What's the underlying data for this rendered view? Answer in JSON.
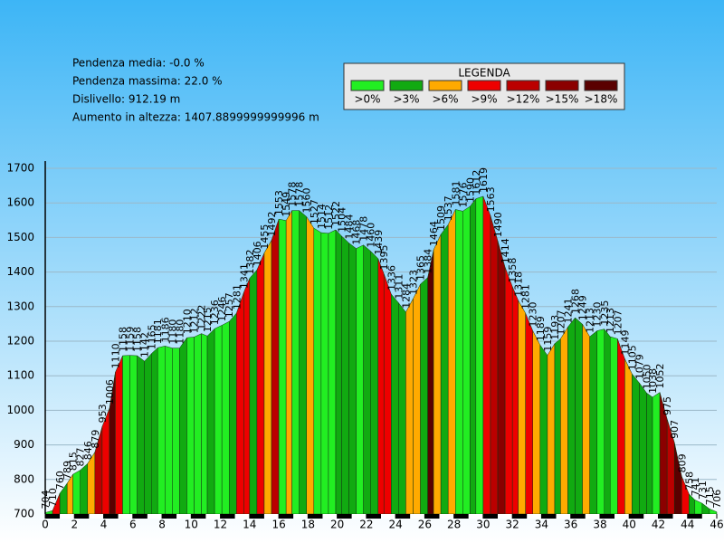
{
  "chart_data": {
    "type": "profile",
    "stats": [
      "Pendenza media: -0.0 %",
      "Pendenza massima: 22.0 %",
      "Dislivello: 912.19 m",
      "Aumento in altezza: 1407.8899999999996 m"
    ],
    "legend_title": "LEGENDA",
    "legend": [
      {
        "label": ">0%",
        "min": 0,
        "color": "#22ee22"
      },
      {
        "label": ">3%",
        "min": 3,
        "color": "#11aa11"
      },
      {
        "label": ">6%",
        "min": 6,
        "color": "#ffaa00"
      },
      {
        "label": ">9%",
        "min": 9,
        "color": "#ee0000"
      },
      {
        "label": ">12%",
        "min": 12,
        "color": "#bb0000"
      },
      {
        "label": ">15%",
        "min": 15,
        "color": "#8b0000"
      },
      {
        "label": ">18%",
        "min": 18,
        "color": "#5a0000"
      }
    ],
    "x": [
      0,
      0.5,
      1.0,
      1.5,
      1.9,
      2.4,
      2.9,
      3.4,
      3.9,
      4.4,
      4.8,
      5.3,
      5.8,
      6.3,
      6.8,
      7.3,
      7.7,
      8.2,
      8.7,
      9.2,
      9.7,
      10.2,
      10.7,
      11.1,
      11.6,
      12.1,
      12.6,
      13.1,
      13.6,
      14.0,
      14.5,
      15.0,
      15.5,
      16.0,
      16.5,
      16.9,
      17.4,
      17.9,
      18.4,
      18.9,
      19.4,
      19.9,
      20.3,
      20.8,
      21.3,
      21.8,
      22.3,
      22.8,
      23.2,
      23.7,
      24.2,
      24.7,
      25.2,
      25.7,
      26.2,
      26.6,
      27.1,
      27.6,
      28.1,
      28.6,
      29.1,
      29.5,
      30.0,
      30.5,
      31.0,
      31.5,
      32.0,
      32.4,
      32.9,
      33.4,
      33.9,
      34.4,
      34.9,
      35.3,
      35.8,
      36.3,
      36.8,
      37.3,
      37.8,
      38.3,
      38.7,
      39.2,
      39.7,
      40.2,
      40.7,
      41.2,
      41.6,
      42.1,
      42.6,
      43.1,
      43.6,
      44.1,
      44.5,
      45.0,
      45.5,
      46.0
    ],
    "values": [
      704,
      710,
      760,
      789,
      815,
      827,
      846,
      879,
      953,
      1006,
      1110,
      1158,
      1159,
      1158,
      1142,
      1165,
      1181,
      1186,
      1180,
      1180,
      1210,
      1212,
      1222,
      1215,
      1236,
      1246,
      1257,
      1281,
      1341,
      1382,
      1406,
      1455,
      1492,
      1553,
      1549,
      1578,
      1578,
      1560,
      1527,
      1514,
      1512,
      1522,
      1504,
      1484,
      1468,
      1478,
      1460,
      1439,
      1395,
      1336,
      1311,
      1284,
      1323,
      1365,
      1384,
      1464,
      1509,
      1537,
      1581,
      1576,
      1590,
      1612,
      1619,
      1563,
      1490,
      1414,
      1358,
      1318,
      1281,
      1230,
      1189,
      1159,
      1193,
      1207,
      1241,
      1268,
      1249,
      1213,
      1230,
      1235,
      1213,
      1207,
      1149,
      1105,
      1079,
      1050,
      1038,
      1052,
      975,
      907,
      809,
      758,
      741,
      731,
      715,
      706
    ],
    "xlim": [
      0,
      46
    ],
    "ylim": [
      700,
      1700
    ],
    "xticks": [
      0,
      2,
      4,
      6,
      8,
      10,
      12,
      14,
      16,
      18,
      20,
      22,
      24,
      26,
      28,
      30,
      32,
      34,
      36,
      38,
      40,
      42,
      44,
      46
    ],
    "yticks": [
      700,
      800,
      900,
      1000,
      1100,
      1200,
      1300,
      1400,
      1500,
      1600,
      1700
    ],
    "grid": true
  }
}
